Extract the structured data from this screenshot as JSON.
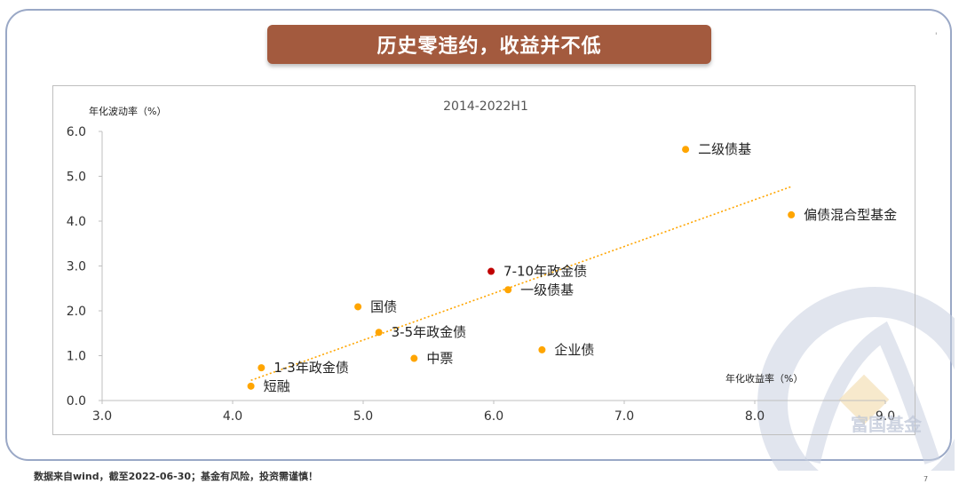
{
  "banner": {
    "title": "历史零违约，收益并不低"
  },
  "footer": {
    "note": "数据来自wind，截至2022-06-30；基金有风险，投资需谨慎！"
  },
  "page_number": "7",
  "top_mark": "'",
  "watermark": {
    "brand_text": "富国基金"
  },
  "colors": {
    "banner": "#a35a3e",
    "point": "#ffa500",
    "highlight_point": "#c00000",
    "trendline": "#ffa500",
    "frame": "#9aa8c6",
    "watermark": "#c8d0e0"
  },
  "chart_data": {
    "type": "scatter",
    "title": "2014-2022H1",
    "xlabel": "年化收益率（%）",
    "ylabel": "年化波动率（%）",
    "xlim": [
      3.0,
      9.0
    ],
    "ylim": [
      0.0,
      6.0
    ],
    "x_ticks": [
      "3.0",
      "4.0",
      "5.0",
      "6.0",
      "7.0",
      "8.0",
      "9.0"
    ],
    "y_ticks": [
      "0.0",
      "1.0",
      "2.0",
      "3.0",
      "4.0",
      "5.0",
      "6.0"
    ],
    "grid": false,
    "points": [
      {
        "label": "短融",
        "x": 4.14,
        "y": 0.32,
        "color": "#ffa500"
      },
      {
        "label": "1-3年政金债",
        "x": 4.22,
        "y": 0.73,
        "color": "#ffa500"
      },
      {
        "label": "国债",
        "x": 4.96,
        "y": 2.09,
        "color": "#ffa500"
      },
      {
        "label": "3-5年政金债",
        "x": 5.12,
        "y": 1.52,
        "color": "#ffa500"
      },
      {
        "label": "中票",
        "x": 5.39,
        "y": 0.94,
        "color": "#ffa500"
      },
      {
        "label": "7-10年政金债",
        "x": 5.98,
        "y": 2.88,
        "color": "#c00000"
      },
      {
        "label": "一级债基",
        "x": 6.11,
        "y": 2.47,
        "color": "#ffa500"
      },
      {
        "label": "企业债",
        "x": 6.37,
        "y": 1.13,
        "color": "#ffa500"
      },
      {
        "label": "二级债基",
        "x": 7.47,
        "y": 5.6,
        "color": "#ffa500"
      },
      {
        "label": "偏债混合型基金",
        "x": 8.28,
        "y": 4.14,
        "color": "#ffa500"
      }
    ],
    "trendline": {
      "x": [
        4.14,
        8.28
      ],
      "y": [
        0.45,
        4.77
      ]
    }
  }
}
